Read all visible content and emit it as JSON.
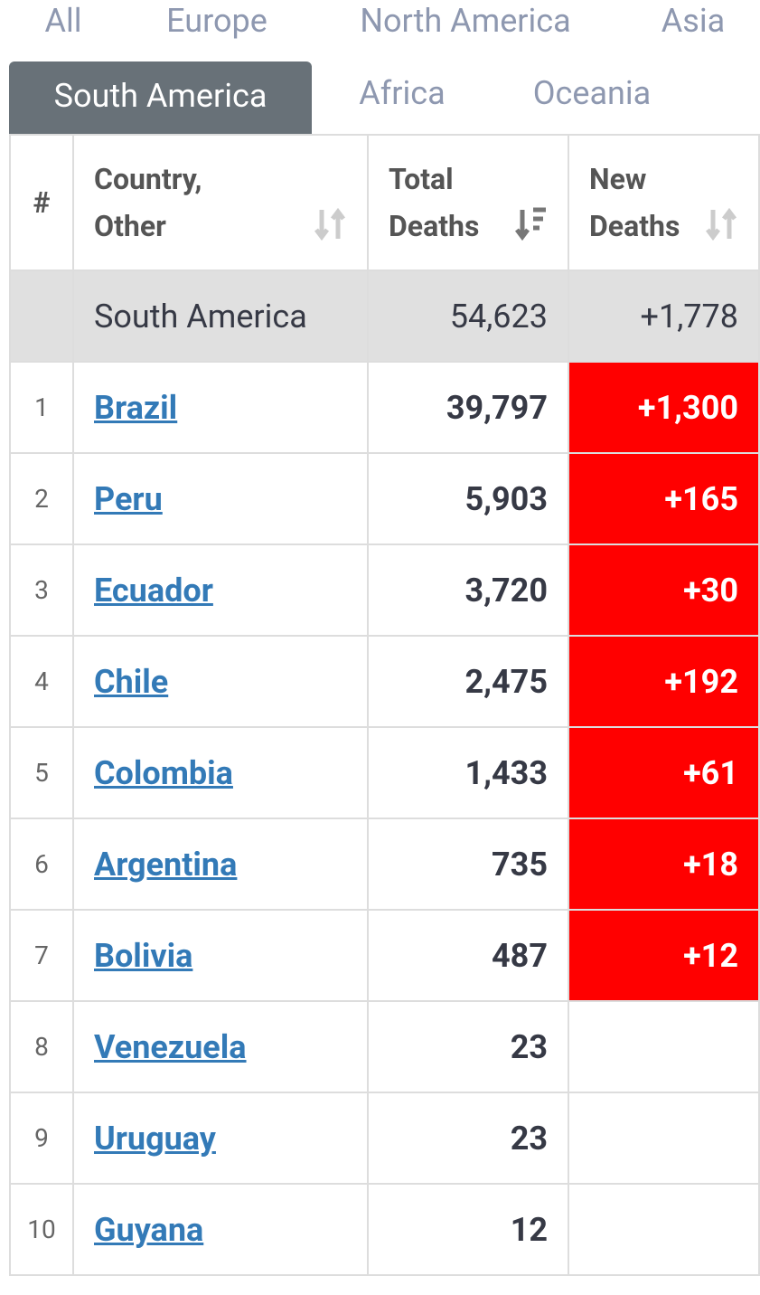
{
  "tabs": {
    "row1": [
      "All",
      "Europe",
      "North America",
      "Asia"
    ],
    "row2": [
      "South America",
      "Africa",
      "Oceania"
    ],
    "active": "South America"
  },
  "table": {
    "headers": [
      "#",
      "Country, Other",
      "Total Deaths",
      "New Deaths"
    ],
    "summary": {
      "region": "South America",
      "total_deaths": "54,623",
      "new_deaths": "+1,778"
    },
    "rows": [
      {
        "rank": "1",
        "country": "Brazil",
        "total_deaths": "39,797",
        "new_deaths": "+1,300"
      },
      {
        "rank": "2",
        "country": "Peru",
        "total_deaths": "5,903",
        "new_deaths": "+165"
      },
      {
        "rank": "3",
        "country": "Ecuador",
        "total_deaths": "3,720",
        "new_deaths": "+30"
      },
      {
        "rank": "4",
        "country": "Chile",
        "total_deaths": "2,475",
        "new_deaths": "+192"
      },
      {
        "rank": "5",
        "country": "Colombia",
        "total_deaths": "1,433",
        "new_deaths": "+61"
      },
      {
        "rank": "6",
        "country": "Argentina",
        "total_deaths": "735",
        "new_deaths": "+18"
      },
      {
        "rank": "7",
        "country": "Bolivia",
        "total_deaths": "487",
        "new_deaths": "+12"
      },
      {
        "rank": "8",
        "country": "Venezuela",
        "total_deaths": "23"
      },
      {
        "rank": "9",
        "country": "Uruguay",
        "total_deaths": "23"
      },
      {
        "rank": "10",
        "country": "Guyana",
        "total_deaths": "12"
      }
    ]
  }
}
